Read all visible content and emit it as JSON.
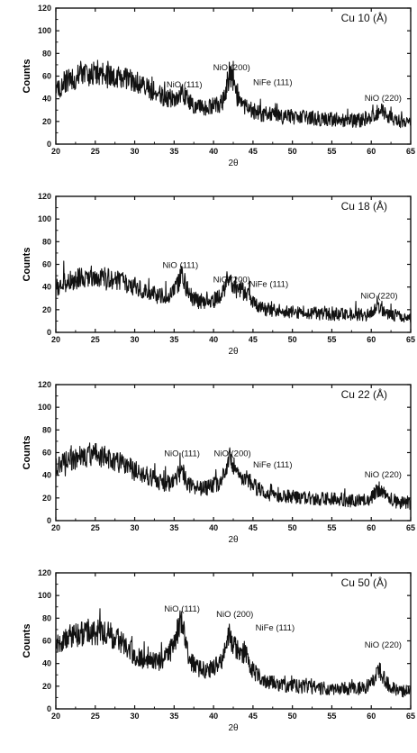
{
  "chart_data": [
    {
      "type": "line",
      "title": "Cu 10 (Å)",
      "xlabel": "2θ",
      "ylabel": "Counts",
      "xlim": [
        20,
        65
      ],
      "ylim": [
        0,
        120
      ],
      "xticks": [
        20,
        25,
        30,
        35,
        40,
        45,
        50,
        55,
        60,
        65
      ],
      "yticks": [
        0,
        20,
        40,
        60,
        80,
        100,
        120
      ],
      "grid": false,
      "x": [
        20,
        21,
        22,
        23,
        24,
        25,
        26,
        27,
        28,
        29,
        30,
        31,
        32,
        33,
        34,
        35,
        35.5,
        36,
        36.5,
        37,
        38,
        39,
        40,
        41,
        41.5,
        42,
        42.5,
        43,
        43.5,
        44,
        44.5,
        45,
        46,
        47,
        48,
        49,
        50,
        51,
        52,
        53,
        54,
        55,
        56,
        57,
        58,
        59,
        60,
        60.5,
        61,
        61.5,
        62,
        63,
        64,
        65
      ],
      "series": [
        {
          "values": [
            46,
            54,
            58,
            60,
            62,
            62,
            63,
            62,
            60,
            57,
            55,
            52,
            48,
            44,
            41,
            40,
            42,
            45,
            41,
            36,
            33,
            32,
            34,
            36,
            44,
            64,
            55,
            40,
            35,
            34,
            32,
            29,
            27,
            26,
            25,
            24,
            24,
            24,
            23,
            23,
            22,
            22,
            22,
            21,
            21,
            21,
            23,
            26,
            30,
            28,
            24,
            21,
            19,
            18
          ]
        }
      ],
      "annotations": [
        {
          "text": "NiO (111)",
          "x": 36.3,
          "y": 50
        },
        {
          "text": "NiO (200)",
          "x": 42.3,
          "y": 65
        },
        {
          "text": "NiFe (111)",
          "x": 47.5,
          "y": 52
        },
        {
          "text": "NiO (220)",
          "x": 61.5,
          "y": 38
        }
      ]
    },
    {
      "type": "line",
      "title": "Cu 18 (Å)",
      "xlabel": "2θ",
      "ylabel": "Counts",
      "xlim": [
        20,
        65
      ],
      "ylim": [
        0,
        120
      ],
      "xticks": [
        20,
        25,
        30,
        35,
        40,
        45,
        50,
        55,
        60,
        65
      ],
      "yticks": [
        0,
        20,
        40,
        60,
        80,
        100,
        120
      ],
      "grid": false,
      "x": [
        20,
        21,
        22,
        23,
        24,
        25,
        26,
        27,
        28,
        29,
        30,
        31,
        32,
        33,
        34,
        35,
        35.5,
        36,
        36.5,
        37,
        38,
        39,
        40,
        41,
        41.5,
        42,
        42.5,
        43,
        43.5,
        44,
        44.5,
        45,
        46,
        47,
        48,
        49,
        50,
        51,
        52,
        53,
        54,
        55,
        56,
        57,
        58,
        59,
        60,
        60.5,
        61,
        61.5,
        62,
        63,
        64,
        65
      ],
      "series": [
        {
          "values": [
            40,
            44,
            46,
            48,
            50,
            50,
            49,
            47,
            45,
            42,
            40,
            37,
            34,
            32,
            32,
            35,
            43,
            52,
            40,
            32,
            28,
            26,
            28,
            32,
            40,
            48,
            42,
            40,
            38,
            34,
            32,
            27,
            22,
            20,
            20,
            19,
            18,
            18,
            17,
            17,
            17,
            16,
            16,
            16,
            16,
            15,
            17,
            20,
            22,
            20,
            16,
            15,
            14,
            13
          ]
        }
      ],
      "annotations": [
        {
          "text": "NiO (111)",
          "x": 35.8,
          "y": 57
        },
        {
          "text": "NiO (200)",
          "x": 42.3,
          "y": 44
        },
        {
          "text": "NiFe (111)",
          "x": 47,
          "y": 40
        },
        {
          "text": "NiO (220)",
          "x": 61,
          "y": 30
        }
      ]
    },
    {
      "type": "line",
      "title": "Cu 22 (Å)",
      "xlabel": "2θ",
      "ylabel": "Counts",
      "xlim": [
        20,
        65
      ],
      "ylim": [
        0,
        120
      ],
      "xticks": [
        20,
        25,
        30,
        35,
        40,
        45,
        50,
        55,
        60,
        65
      ],
      "yticks": [
        0,
        20,
        40,
        60,
        80,
        100,
        120
      ],
      "grid": false,
      "x": [
        20,
        21,
        22,
        23,
        24,
        25,
        26,
        27,
        28,
        29,
        30,
        31,
        32,
        33,
        34,
        35,
        35.5,
        36,
        36.5,
        37,
        38,
        39,
        40,
        41,
        41.5,
        42,
        42.5,
        43,
        43.5,
        44,
        44.5,
        45,
        46,
        47,
        48,
        49,
        50,
        51,
        52,
        53,
        54,
        55,
        56,
        57,
        58,
        59,
        60,
        60.5,
        61,
        61.5,
        62,
        63,
        64,
        65
      ],
      "series": [
        {
          "values": [
            48,
            52,
            54,
            56,
            57,
            58,
            57,
            55,
            52,
            48,
            44,
            41,
            38,
            35,
            33,
            34,
            40,
            46,
            36,
            31,
            29,
            29,
            31,
            35,
            44,
            54,
            46,
            42,
            40,
            38,
            35,
            31,
            26,
            24,
            23,
            22,
            21,
            21,
            20,
            20,
            19,
            19,
            19,
            18,
            18,
            18,
            20,
            24,
            28,
            25,
            20,
            18,
            16,
            15
          ]
        }
      ],
      "annotations": [
        {
          "text": "NiO (111)",
          "x": 36,
          "y": 57
        },
        {
          "text": "NiO (200)",
          "x": 42.4,
          "y": 57
        },
        {
          "text": "NiFe (111)",
          "x": 47.5,
          "y": 47
        },
        {
          "text": "NiO (220)",
          "x": 61.5,
          "y": 38
        }
      ]
    },
    {
      "type": "line",
      "title": "Cu 50 (Å)",
      "xlabel": "2θ",
      "ylabel": "Counts",
      "xlim": [
        20,
        65
      ],
      "ylim": [
        0,
        120
      ],
      "xticks": [
        20,
        25,
        30,
        35,
        40,
        45,
        50,
        55,
        60,
        65
      ],
      "yticks": [
        0,
        20,
        40,
        60,
        80,
        100,
        120
      ],
      "grid": false,
      "x": [
        20,
        21,
        22,
        23,
        24,
        25,
        26,
        27,
        28,
        29,
        30,
        31,
        32,
        33,
        34,
        35,
        35.5,
        36,
        36.5,
        37,
        38,
        39,
        40,
        41,
        41.5,
        42,
        42.5,
        43,
        43.5,
        44,
        44.5,
        45,
        46,
        47,
        48,
        49,
        50,
        51,
        52,
        53,
        54,
        55,
        56,
        57,
        58,
        59,
        60,
        60.5,
        61,
        61.5,
        62,
        63,
        64,
        65
      ],
      "series": [
        {
          "values": [
            56,
            60,
            63,
            66,
            68,
            68,
            67,
            65,
            60,
            54,
            48,
            44,
            42,
            42,
            46,
            56,
            70,
            80,
            60,
            42,
            36,
            34,
            36,
            42,
            54,
            65,
            56,
            52,
            50,
            48,
            42,
            34,
            27,
            24,
            22,
            21,
            20,
            20,
            19,
            19,
            18,
            18,
            18,
            18,
            18,
            18,
            22,
            28,
            34,
            29,
            22,
            18,
            16,
            15
          ]
        }
      ],
      "annotations": [
        {
          "text": "NiO (111)",
          "x": 36,
          "y": 86
        },
        {
          "text": "NiO (200)",
          "x": 42.7,
          "y": 81
        },
        {
          "text": "NiFe (111)",
          "x": 47.8,
          "y": 69
        },
        {
          "text": "NiO (220)",
          "x": 61.5,
          "y": 54
        }
      ]
    }
  ]
}
